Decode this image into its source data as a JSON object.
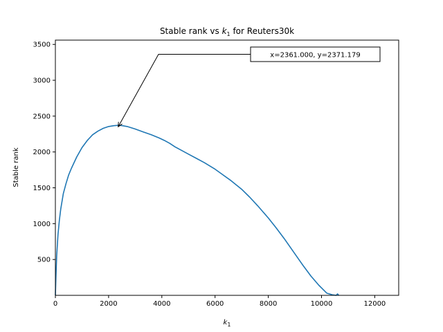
{
  "chart_data": {
    "type": "line",
    "title_prefix": "Stable rank vs ",
    "title_var": "k",
    "title_sub": "1",
    "title_suffix": " for Reuters30k",
    "xlabel_var": "k",
    "xlabel_sub": "1",
    "ylabel": "Stable rank",
    "xlim": [
      0,
      12900
    ],
    "ylim": [
      0,
      3560
    ],
    "xticks": [
      0,
      2000,
      4000,
      6000,
      8000,
      10000,
      12000
    ],
    "yticks": [
      500,
      1000,
      1500,
      2000,
      2500,
      3000,
      3500
    ],
    "grid": false,
    "line_color": "#1f77b4",
    "series": [
      {
        "x": [
          0,
          20,
          50,
          100,
          150,
          200,
          300,
          400,
          500,
          600,
          800,
          1000,
          1200,
          1400,
          1600,
          1800,
          2000,
          2200,
          2361,
          2500,
          2700,
          3000,
          3300,
          3600,
          3900,
          4100,
          4300,
          4500,
          4700,
          5000,
          5300,
          5600,
          6000,
          6300,
          6600,
          7000,
          7300,
          7600,
          8000,
          8300,
          8600,
          9000,
          9300,
          9600,
          9900,
          10200,
          10400,
          10550,
          10600,
          10650
        ],
        "y": [
          0,
          250,
          550,
          850,
          1050,
          1200,
          1420,
          1560,
          1680,
          1770,
          1930,
          2060,
          2160,
          2240,
          2290,
          2330,
          2355,
          2367,
          2371,
          2368,
          2355,
          2320,
          2280,
          2240,
          2195,
          2160,
          2120,
          2070,
          2030,
          1970,
          1910,
          1850,
          1760,
          1680,
          1600,
          1480,
          1370,
          1250,
          1080,
          940,
          790,
          580,
          420,
          270,
          140,
          30,
          8,
          0,
          20,
          0
        ]
      }
    ],
    "annotation": {
      "text": "x=2361.000, y=2371.179",
      "x": 2361,
      "y": 2371.179
    }
  }
}
